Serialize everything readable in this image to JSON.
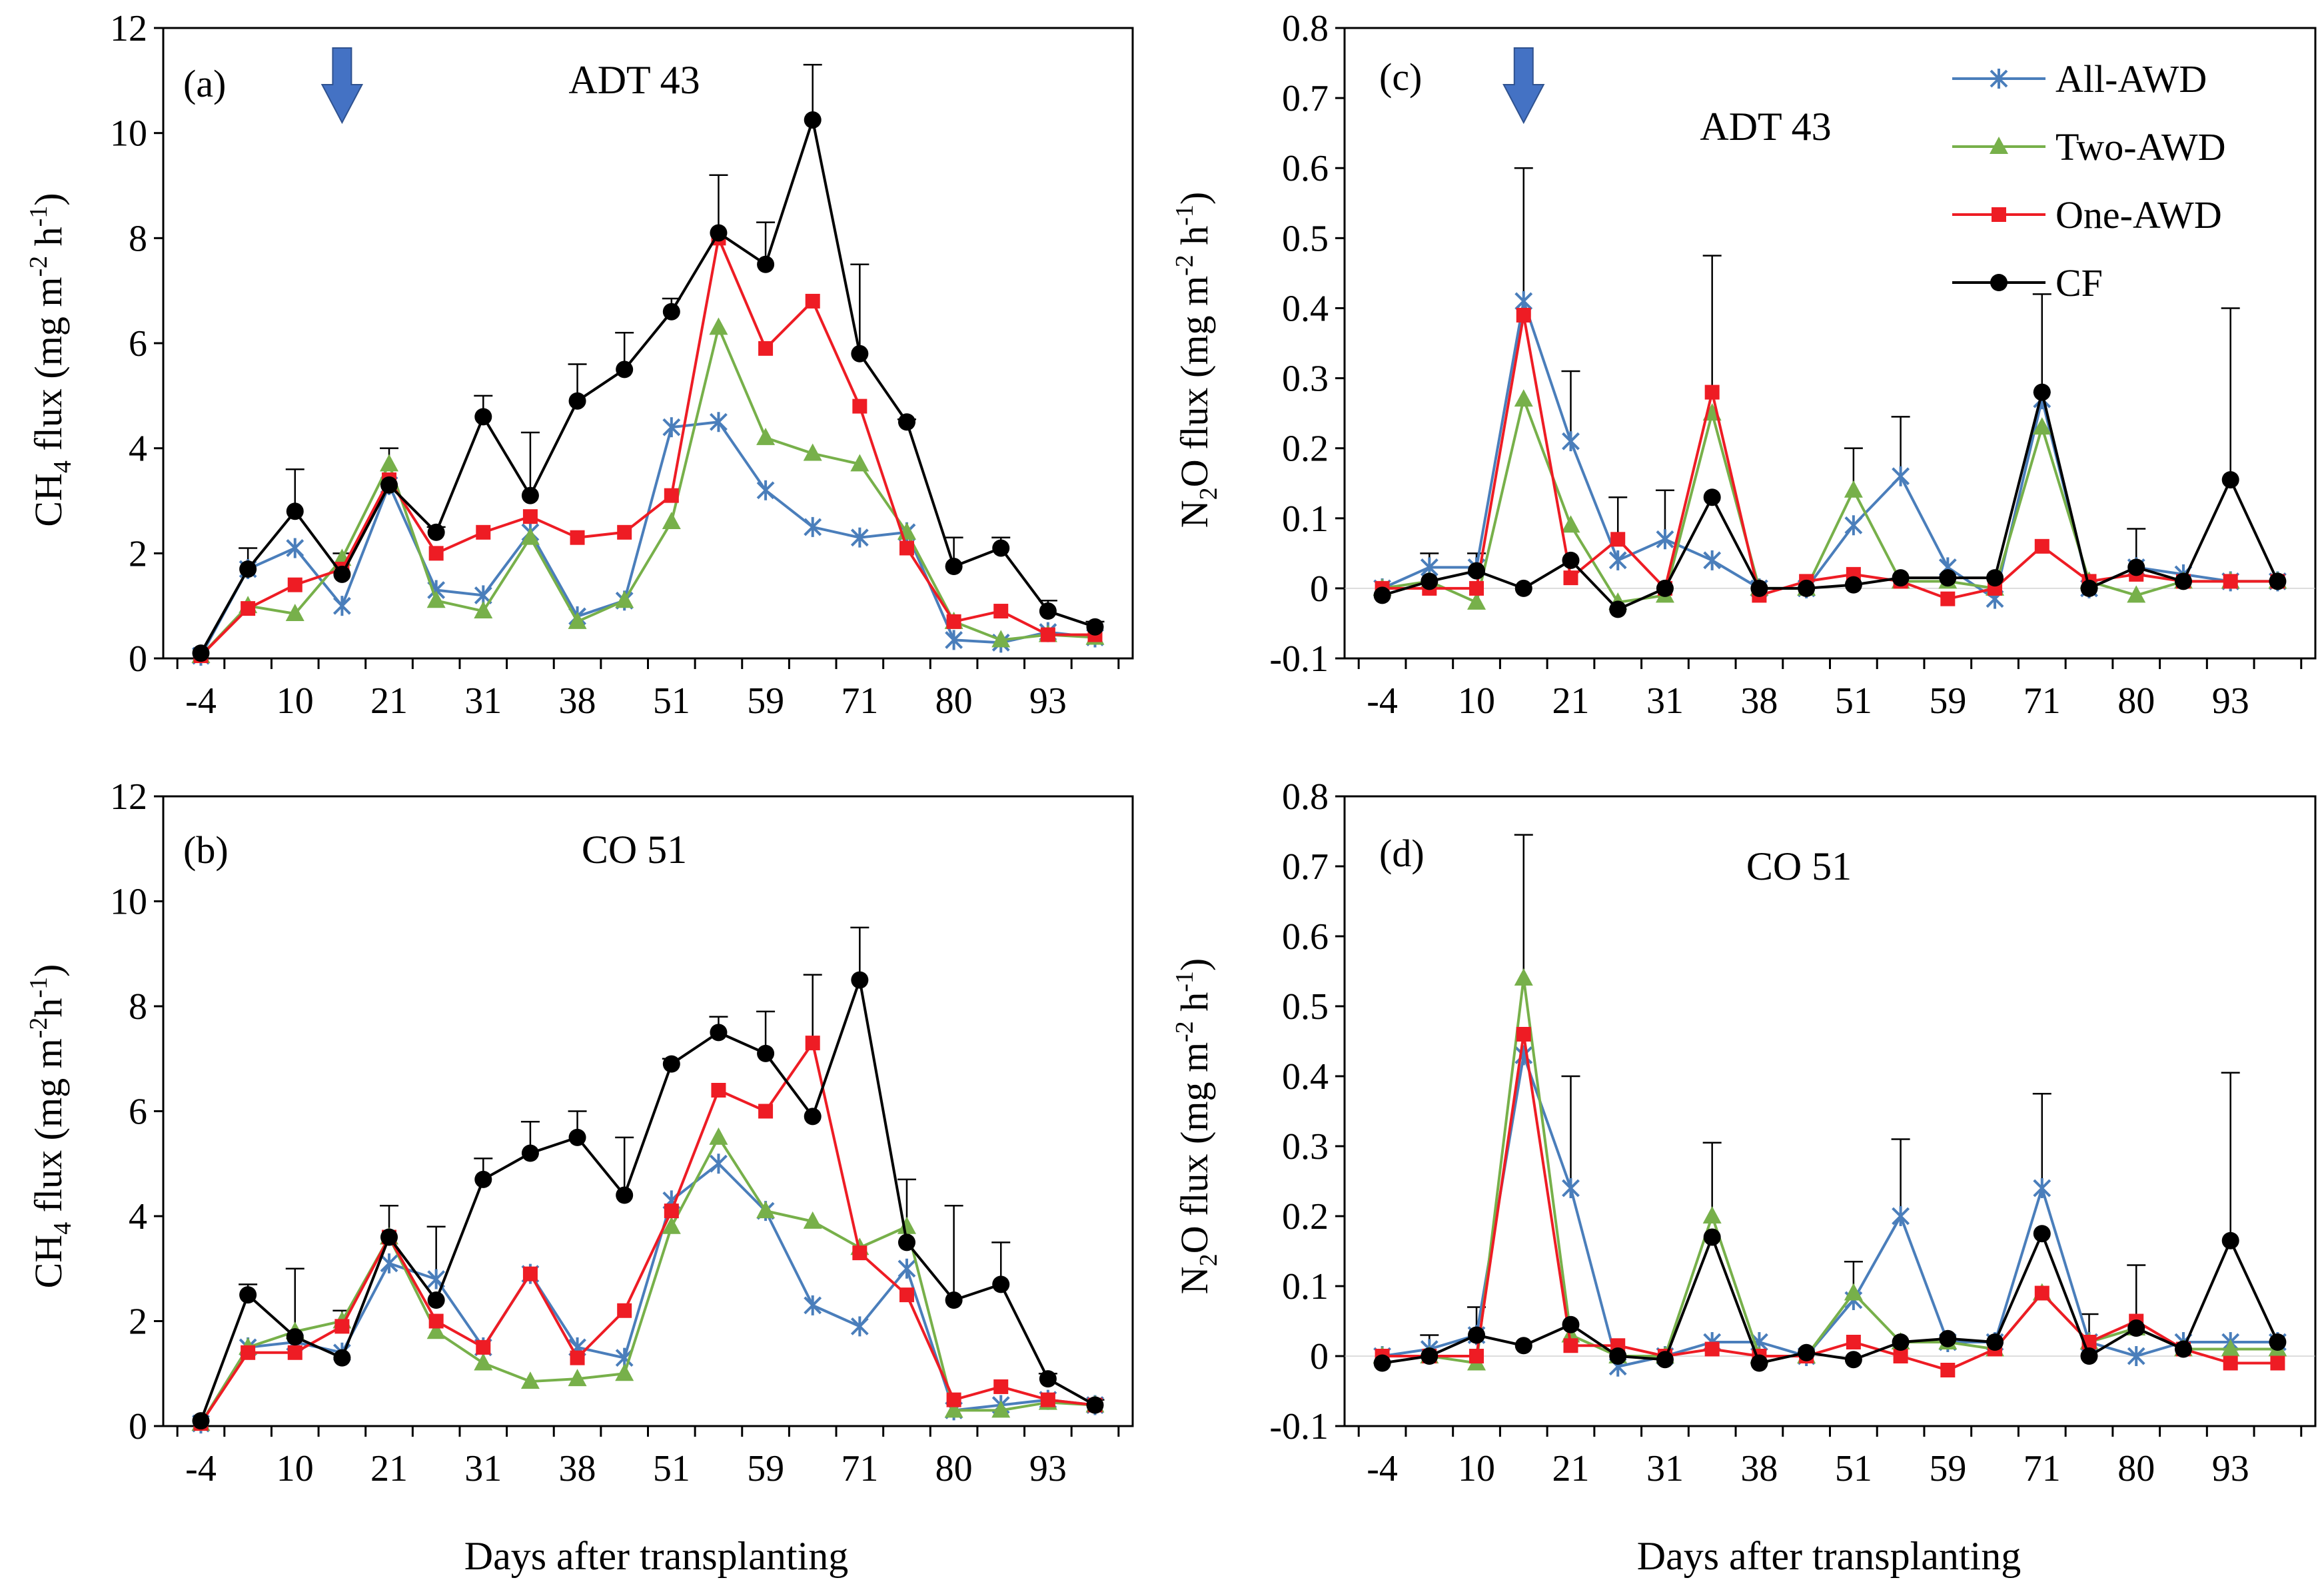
{
  "figure": {
    "xlabel": "Days after transplanting",
    "x_tick_labels": [
      "-4",
      "10",
      "21",
      "31",
      "38",
      "51",
      "59",
      "71",
      "80",
      "93"
    ],
    "x_tick_indices": [
      0,
      2,
      4,
      6,
      8,
      10,
      12,
      14,
      16,
      18
    ],
    "n_points": 20,
    "series_styles": {
      "All-AWD": {
        "color": "#4a7ebb",
        "marker": "star"
      },
      "Two-AWD": {
        "color": "#77b04a",
        "marker": "triangle"
      },
      "One-AWD": {
        "color": "#ee1c24",
        "marker": "square"
      },
      "CF": {
        "color": "#000000",
        "marker": "circle"
      }
    }
  },
  "chart_data": [
    {
      "type": "line",
      "panel": "(a)",
      "title": "ADT 43",
      "ylabel_main": "CH",
      "ylabel_sub": "4",
      "ylabel_rest": " flux (mg m",
      "ylabel_sup1": "-2",
      "ylabel_mid": " h",
      "ylabel_sup2": "-1",
      "ylabel_end": ")",
      "ylim": [
        0,
        12
      ],
      "yticks": [
        0,
        2,
        4,
        6,
        8,
        10,
        12
      ],
      "ytick_labels": [
        "0",
        "2",
        "4",
        "6",
        "8",
        "10",
        "12"
      ],
      "arrow_at_index": 3,
      "series": [
        {
          "name": "All-AWD",
          "values": [
            0.05,
            1.7,
            2.1,
            1.0,
            3.3,
            1.3,
            1.2,
            2.4,
            0.8,
            1.1,
            4.4,
            4.5,
            3.2,
            2.5,
            2.3,
            2.4,
            0.35,
            0.3,
            0.5,
            0.4
          ]
        },
        {
          "name": "Two-AWD",
          "values": [
            0.05,
            1.0,
            0.85,
            1.9,
            3.7,
            1.1,
            0.9,
            2.3,
            0.7,
            1.1,
            2.6,
            6.3,
            4.2,
            3.9,
            3.7,
            2.4,
            0.7,
            0.35,
            0.45,
            0.4
          ]
        },
        {
          "name": "One-AWD",
          "values": [
            0.05,
            0.95,
            1.4,
            1.7,
            3.4,
            2.0,
            2.4,
            2.7,
            2.3,
            2.4,
            3.1,
            8.0,
            5.9,
            6.8,
            4.8,
            2.1,
            0.7,
            0.9,
            0.45,
            0.45
          ]
        },
        {
          "name": "CF",
          "values": [
            0.1,
            1.7,
            2.8,
            1.6,
            3.3,
            2.4,
            4.6,
            3.1,
            4.9,
            5.5,
            6.6,
            8.1,
            7.5,
            10.25,
            5.8,
            4.5,
            1.75,
            2.1,
            0.9,
            0.6
          ]
        }
      ],
      "error_tops": [
        null,
        2.1,
        3.6,
        2.0,
        4.0,
        2.5,
        5.0,
        4.3,
        5.6,
        6.2,
        6.85,
        9.2,
        8.3,
        11.3,
        7.5,
        4.55,
        2.3,
        2.3,
        1.1,
        0.7
      ]
    },
    {
      "type": "line",
      "panel": "(b)",
      "title": "CO 51",
      "ylabel_main": "CH",
      "ylabel_sub": "4",
      "ylabel_rest": " flux (mg m",
      "ylabel_sup1": "-2",
      "ylabel_mid": "h",
      "ylabel_sup2": "-1",
      "ylabel_end": ")",
      "ylim": [
        0,
        12
      ],
      "yticks": [
        0,
        2,
        4,
        6,
        8,
        10,
        12
      ],
      "ytick_labels": [
        "0",
        "2",
        "4",
        "6",
        "8",
        "10",
        "12"
      ],
      "arrow_at_index": null,
      "series": [
        {
          "name": "All-AWD",
          "values": [
            0.05,
            1.5,
            1.6,
            1.4,
            3.1,
            2.8,
            1.5,
            2.9,
            1.5,
            1.3,
            4.3,
            5.0,
            4.1,
            2.3,
            1.9,
            3.0,
            0.3,
            0.4,
            0.5,
            0.4
          ]
        },
        {
          "name": "Two-AWD",
          "values": [
            0.05,
            1.5,
            1.8,
            2.0,
            3.6,
            1.8,
            1.2,
            0.85,
            0.9,
            1.0,
            3.8,
            5.5,
            4.1,
            3.9,
            3.4,
            3.8,
            0.3,
            0.3,
            0.45,
            0.4
          ]
        },
        {
          "name": "One-AWD",
          "values": [
            0.05,
            1.4,
            1.4,
            1.9,
            3.6,
            2.0,
            1.5,
            2.9,
            1.3,
            2.2,
            4.1,
            6.4,
            6.0,
            7.3,
            3.3,
            2.5,
            0.5,
            0.75,
            0.5,
            0.4
          ]
        },
        {
          "name": "CF",
          "values": [
            0.1,
            2.5,
            1.7,
            1.3,
            3.6,
            2.4,
            4.7,
            5.2,
            5.5,
            4.4,
            6.9,
            7.5,
            7.1,
            5.9,
            8.5,
            3.5,
            2.4,
            2.7,
            0.9,
            0.4
          ]
        }
      ],
      "error_tops": [
        null,
        2.7,
        3.0,
        2.2,
        4.2,
        3.8,
        5.1,
        5.8,
        6.0,
        5.5,
        7.0,
        7.8,
        7.9,
        8.6,
        9.5,
        4.7,
        4.2,
        3.5,
        1.0,
        0.5
      ]
    },
    {
      "type": "line",
      "panel": "(c)",
      "title": "ADT 43",
      "ylabel_main": "N",
      "ylabel_sub": "2",
      "ylabel_rest": "O flux (mg m",
      "ylabel_sup1": "-2",
      "ylabel_mid": " h",
      "ylabel_sup2": "-1",
      "ylabel_end": ")",
      "ylim": [
        -0.1,
        0.8
      ],
      "yticks": [
        -0.1,
        0,
        0.1,
        0.2,
        0.3,
        0.4,
        0.5,
        0.6,
        0.7,
        0.8
      ],
      "ytick_labels": [
        "-0.1",
        "0",
        "0.1",
        "0.2",
        "0.3",
        "0.4",
        "0.5",
        "0.6",
        "0.7",
        "0.8"
      ],
      "arrow_at_index": 3,
      "legend": [
        "All-AWD",
        "Two-AWD",
        "One-AWD",
        "CF"
      ],
      "series": [
        {
          "name": "All-AWD",
          "values": [
            0.0,
            0.03,
            0.03,
            0.41,
            0.21,
            0.04,
            0.07,
            0.04,
            0.0,
            0.0,
            0.09,
            0.16,
            0.03,
            -0.015,
            0.27,
            0.0,
            0.03,
            0.02,
            0.01,
            0.01
          ]
        },
        {
          "name": "Two-AWD",
          "values": [
            0.0,
            0.01,
            -0.02,
            0.27,
            0.09,
            -0.02,
            -0.01,
            0.25,
            0.0,
            0.0,
            0.14,
            0.01,
            0.01,
            0.0,
            0.23,
            0.01,
            -0.01,
            0.01,
            0.01,
            0.01
          ]
        },
        {
          "name": "One-AWD",
          "values": [
            0.0,
            0.0,
            0.0,
            0.39,
            0.015,
            0.07,
            0.0,
            0.28,
            -0.01,
            0.01,
            0.02,
            0.01,
            -0.015,
            0.0,
            0.06,
            0.01,
            0.02,
            0.01,
            0.01,
            0.01
          ]
        },
        {
          "name": "CF",
          "values": [
            -0.01,
            0.01,
            0.025,
            0.0,
            0.04,
            -0.03,
            0.0,
            0.13,
            0.0,
            0.0,
            0.005,
            0.015,
            0.015,
            0.015,
            0.28,
            0.0,
            0.03,
            0.01,
            0.155,
            0.01
          ]
        }
      ],
      "error_tops": [
        null,
        0.05,
        0.05,
        0.6,
        0.31,
        0.13,
        0.14,
        0.475,
        null,
        null,
        0.2,
        0.245,
        null,
        null,
        0.42,
        null,
        0.085,
        null,
        0.4,
        null
      ]
    },
    {
      "type": "line",
      "panel": "(d)",
      "title": "CO 51",
      "ylabel_main": "N",
      "ylabel_sub": "2",
      "ylabel_rest": "O flux (mg m",
      "ylabel_sup1": "-2",
      "ylabel_mid": " h",
      "ylabel_sup2": "-1",
      "ylabel_end": ")",
      "ylim": [
        -0.1,
        0.8
      ],
      "yticks": [
        -0.1,
        0,
        0.1,
        0.2,
        0.3,
        0.4,
        0.5,
        0.6,
        0.7,
        0.8
      ],
      "ytick_labels": [
        "-0.1",
        "0",
        "0.1",
        "0.2",
        "0.3",
        "0.4",
        "0.5",
        "0.6",
        "0.7",
        "0.8"
      ],
      "arrow_at_index": null,
      "series": [
        {
          "name": "All-AWD",
          "values": [
            0.0,
            0.01,
            0.03,
            0.43,
            0.24,
            -0.015,
            0.0,
            0.02,
            0.02,
            0.0,
            0.08,
            0.2,
            0.02,
            0.02,
            0.24,
            0.02,
            0.0,
            0.02,
            0.02,
            0.02
          ]
        },
        {
          "name": "Two-AWD",
          "values": [
            0.0,
            0.0,
            -0.01,
            0.54,
            0.03,
            0.0,
            0.0,
            0.2,
            0.0,
            0.0,
            0.09,
            0.02,
            0.02,
            0.01,
            0.09,
            0.02,
            0.04,
            0.01,
            0.01,
            0.01
          ]
        },
        {
          "name": "One-AWD",
          "values": [
            0.0,
            0.0,
            0.0,
            0.46,
            0.015,
            0.015,
            0.0,
            0.01,
            0.0,
            0.0,
            0.02,
            0.0,
            -0.02,
            0.01,
            0.09,
            0.02,
            0.05,
            0.01,
            -0.01,
            -0.01
          ]
        },
        {
          "name": "CF",
          "values": [
            -0.01,
            0.0,
            0.03,
            0.015,
            0.045,
            0.0,
            -0.005,
            0.17,
            -0.01,
            0.005,
            -0.005,
            0.02,
            0.025,
            0.02,
            0.175,
            0.0,
            0.04,
            0.01,
            0.165,
            0.02
          ]
        }
      ],
      "error_tops": [
        null,
        0.03,
        0.07,
        0.745,
        0.4,
        null,
        null,
        0.305,
        null,
        null,
        0.135,
        0.31,
        null,
        null,
        0.375,
        0.06,
        0.13,
        null,
        0.405,
        null
      ]
    }
  ]
}
